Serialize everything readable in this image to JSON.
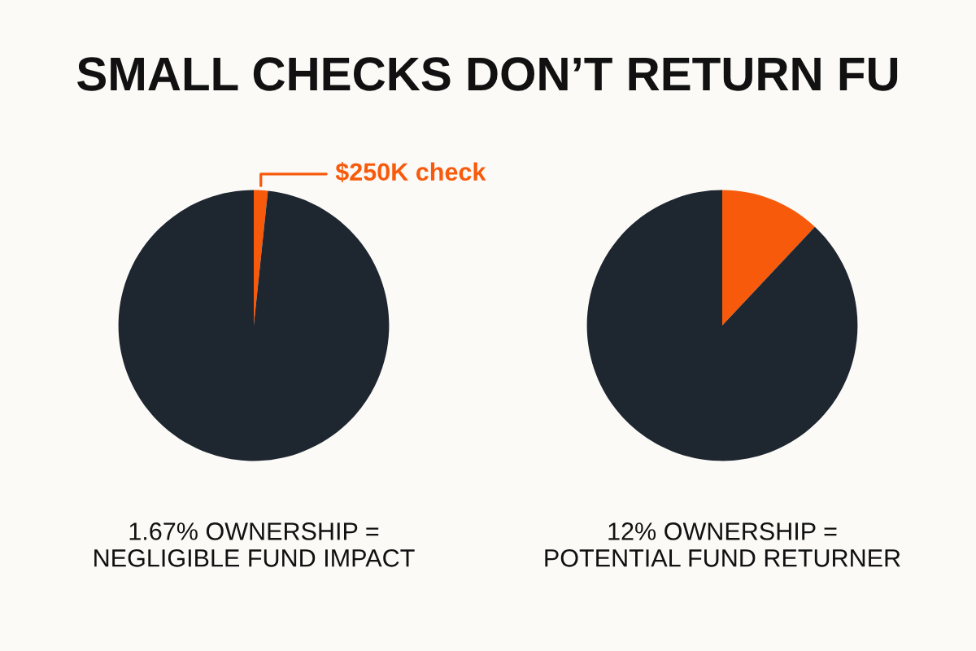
{
  "chart_data": [
    {
      "type": "pie",
      "title": "SMALL CHECKS DON’T RETURN FU",
      "categories": [
        "$250K check",
        null
      ],
      "values": [
        1.67,
        98.33
      ],
      "colors": [
        "#f85a0c",
        "#1e2630"
      ],
      "annotations": [
        "1.67% OWNERSHIP =\nNEGLIGIBLE FUND IMPACT"
      ]
    },
    {
      "type": "pie",
      "categories": [
        null,
        null
      ],
      "values": [
        12,
        88
      ],
      "colors": [
        "#f85a0c",
        "#1e2630"
      ],
      "annotations": [
        "12% OWNERSHIP =\nPOTENTIAL FUND RETURNER"
      ]
    }
  ]
}
